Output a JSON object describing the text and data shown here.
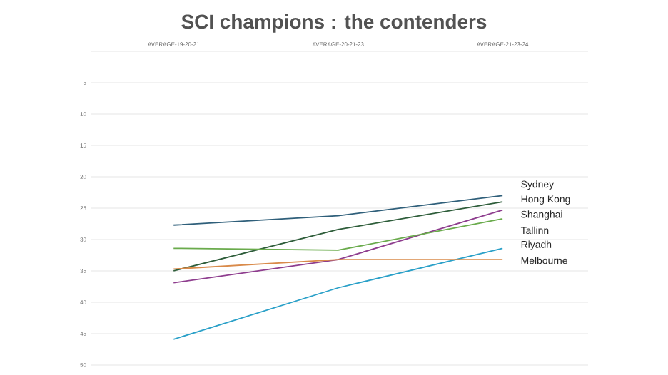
{
  "chart_data": {
    "type": "line",
    "title": "SCI champions : the contenders",
    "categories": [
      "AVERAGE-19-20-21",
      "AVERAGE-20-21-23",
      "AVERAGE-21-23-24"
    ],
    "ylim": [
      50,
      0
    ],
    "yticks": [
      {
        "value": 0,
        "label": null
      },
      5,
      10,
      15,
      20,
      25,
      30,
      35,
      40,
      45,
      50
    ],
    "grid": "y",
    "line_style": "solid",
    "marker": "none",
    "series": [
      {
        "name": "Sydney",
        "color": "#2f5f7a",
        "values": [
          27.7,
          26.2,
          23.0
        ]
      },
      {
        "name": "Hong Kong",
        "color": "#2e5d3a",
        "values": [
          35.0,
          28.4,
          24.0
        ]
      },
      {
        "name": "Shanghai",
        "color": "#8e3d8e",
        "values": [
          36.9,
          33.2,
          25.3
        ]
      },
      {
        "name": "Tallinn",
        "color": "#6aab4c",
        "values": [
          31.4,
          31.7,
          26.7
        ]
      },
      {
        "name": "Riyadh",
        "color": "#2aa0c8",
        "values": [
          45.9,
          37.7,
          31.4
        ]
      },
      {
        "name": "Melbourne",
        "color": "#d98a4a",
        "values": [
          34.7,
          33.2,
          33.2
        ]
      }
    ]
  }
}
